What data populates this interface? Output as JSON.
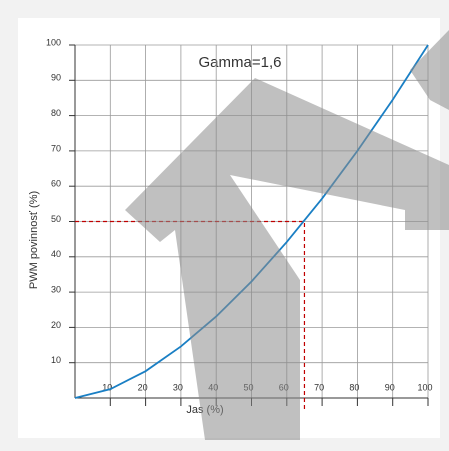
{
  "chart_data": {
    "type": "line",
    "title": "Gamma=1,6",
    "x_label": "Jas (%)",
    "y_label": "PWM povinnosť (%)",
    "x": [
      0,
      10,
      20,
      30,
      40,
      50,
      60,
      70,
      80,
      90,
      100
    ],
    "series": [
      {
        "name": "Gamma=1,6",
        "color": "#1a7fc4",
        "values": [
          0,
          2.5,
          7.6,
          14.6,
          23.1,
          33.0,
          44.2,
          56.5,
          70.0,
          84.5,
          100
        ]
      }
    ],
    "guide": {
      "x": 65,
      "y": 50,
      "color": "#c00000"
    },
    "xlim": [
      0,
      100
    ],
    "ylim": [
      0,
      100
    ],
    "xticks": [
      10,
      20,
      30,
      40,
      50,
      60,
      70,
      80,
      90,
      100
    ],
    "yticks": [
      10,
      20,
      30,
      40,
      50,
      60,
      70,
      80,
      90,
      100
    ],
    "grid": true
  }
}
